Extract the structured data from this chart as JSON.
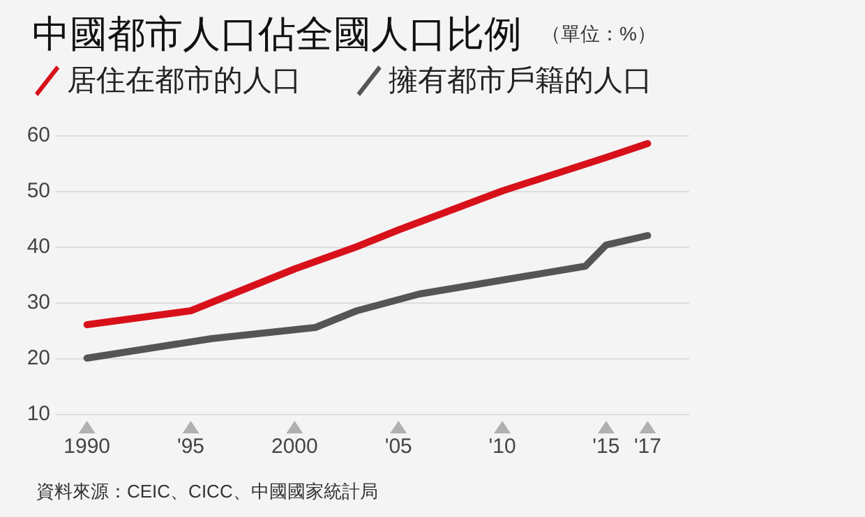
{
  "chart_data": {
    "type": "line",
    "title": "中國都市人口佔全國人口比例",
    "subtitle": "（單位：%）",
    "series": [
      {
        "name": "居住在都市的人口",
        "color": "#d7101a",
        "x": [
          1990,
          1995,
          2000,
          2003,
          2005,
          2010,
          2015,
          2017
        ],
        "values": [
          26,
          28.5,
          36,
          40,
          43,
          50,
          56,
          58.5
        ]
      },
      {
        "name": "擁有都市戶籍的人口",
        "color": "#555555",
        "x": [
          1990,
          1996,
          2001,
          2003,
          2006,
          2014,
          2015,
          2017
        ],
        "values": [
          20,
          23.5,
          25.5,
          28.5,
          31.5,
          36.5,
          40.3,
          42
        ]
      }
    ],
    "xlim": [
      1988.5,
      2019
    ],
    "xticks": [
      1990,
      {
        "value": 1995,
        "label": "'95"
      },
      2000,
      {
        "value": 2005,
        "label": "'05"
      },
      {
        "value": 2010,
        "label": "'10"
      },
      {
        "value": 2015,
        "label": "'15"
      },
      {
        "value": 2017,
        "label": "'17"
      }
    ],
    "ylim": [
      10,
      60
    ],
    "yticks": [
      10,
      20,
      30,
      40,
      50,
      60
    ],
    "grid": "y",
    "legend": "top left",
    "marker": "none",
    "line_style": "solid",
    "annotations": [
      "資料來源：CEIC、CICC、中國國家統計局"
    ]
  }
}
